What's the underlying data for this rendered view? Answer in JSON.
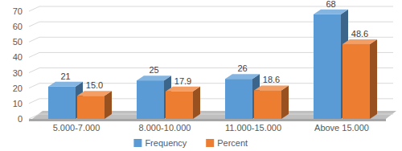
{
  "chart_data": {
    "type": "bar",
    "categories": [
      "5.000-7.000",
      "8.000-10.000",
      "11.000-15.000",
      "Above 15.000"
    ],
    "series": [
      {
        "name": "Frequency",
        "color": "#5b9bd5",
        "values": [
          21,
          25,
          26,
          68
        ]
      },
      {
        "name": "Percent",
        "color": "#ed7d31",
        "values": [
          15.0,
          17.9,
          18.6,
          48.6
        ],
        "value_labels": [
          "15.0",
          "17.9",
          "18.6",
          "48.6"
        ]
      }
    ],
    "ylim": [
      0,
      70
    ],
    "yticks": [
      0,
      10,
      20,
      30,
      40,
      50,
      60,
      70
    ],
    "grid": true,
    "legend": "bottom",
    "data_labels": true
  }
}
